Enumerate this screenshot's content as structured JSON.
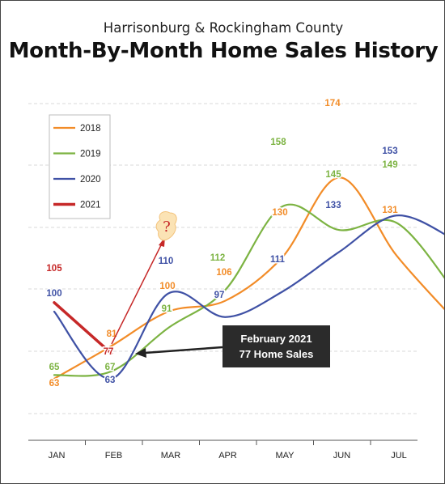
{
  "subtitle": "Harrisonburg & Rockingham County",
  "title": "Month-By-Month Home Sales History",
  "callout": {
    "line1": "February 2021",
    "line2": "77 Home Sales"
  },
  "question_mark": "?",
  "chart_data": {
    "type": "line",
    "title": "Month-By-Month Home Sales History",
    "subtitle": "Harrisonburg & Rockingham County",
    "categories": [
      "JAN",
      "FEB",
      "MAR",
      "APR",
      "MAY",
      "JUN",
      "JUL"
    ],
    "legend_position": "top-left",
    "grid": "horizontal dashed",
    "series": [
      {
        "name": "2018",
        "color": "#F28C28",
        "values": [
          63,
          81,
          100,
          106,
          130,
          174,
          131
        ]
      },
      {
        "name": "2019",
        "color": "#7CB342",
        "values": [
          65,
          67,
          91,
          112,
          158,
          145,
          149
        ]
      },
      {
        "name": "2020",
        "color": "#3F51A5",
        "values": [
          100,
          63,
          110,
          97,
          111,
          133,
          153
        ]
      },
      {
        "name": "2021",
        "color": "#C62828",
        "values": [
          105,
          77,
          null,
          null,
          null,
          null,
          null
        ]
      }
    ],
    "annotations": [
      "February 2021",
      "77 Home Sales",
      "?"
    ]
  }
}
